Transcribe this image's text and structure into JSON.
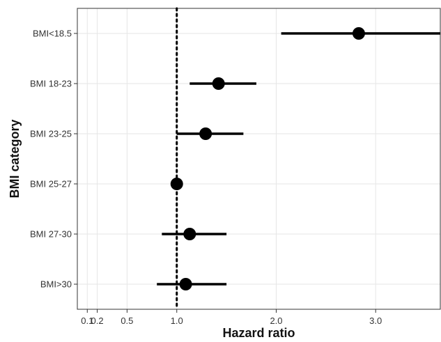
{
  "chart_data": {
    "type": "forest",
    "xlabel": "Hazard ratio",
    "ylabel": "BMI category",
    "xlim": [
      0,
      3.65
    ],
    "x_ticks": [
      {
        "value": 0.1,
        "label": "0.1"
      },
      {
        "value": 0.2,
        "label": "0.2"
      },
      {
        "value": 0.5,
        "label": "0.5"
      },
      {
        "value": 1.0,
        "label": "1.0"
      },
      {
        "value": 2.0,
        "label": "2.0"
      },
      {
        "value": 3.0,
        "label": "3.0"
      }
    ],
    "reference_line": 1.0,
    "grid": true,
    "categories": [
      "BMI<18.5",
      "BMI 18-23",
      "BMI 23-25",
      "BMI 25-27",
      "BMI 27-30",
      "BMI>30"
    ],
    "estimates": [
      2.83,
      1.42,
      1.29,
      1.0,
      1.13,
      1.09
    ],
    "ci_lower": [
      2.05,
      1.13,
      1.0,
      1.0,
      0.85,
      0.8
    ],
    "ci_upper": [
      3.65,
      1.8,
      1.67,
      1.0,
      1.5,
      1.5
    ],
    "colors": {
      "points": "#000000",
      "grid": "#e6e6e6"
    }
  }
}
